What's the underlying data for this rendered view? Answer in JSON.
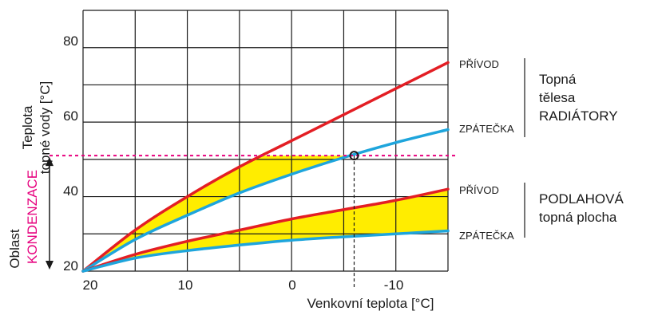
{
  "chart_data": {
    "type": "line",
    "xlabel": "Venkovní teplota [°C]",
    "ylabel_line1": "Teplota",
    "ylabel_line2": "topné vody [°C]",
    "x_ticks": [
      "20",
      "10",
      "0",
      "-10"
    ],
    "y_ticks": [
      "20",
      "40",
      "60",
      "80"
    ],
    "xlim": [
      20,
      -15
    ],
    "ylim": [
      20,
      90
    ],
    "x_grid_values": [
      20,
      15,
      10,
      5,
      0,
      -5,
      -10,
      -15
    ],
    "y_grid_values": [
      20,
      30,
      40,
      50,
      60,
      70,
      80,
      90
    ],
    "grid": true,
    "condensation_threshold": 51,
    "condensation_marker_x": -6,
    "condensation_label_line1": "Oblast",
    "condensation_label_line2": "KONDENZACE",
    "series": [
      {
        "name": "PŘÍVOD",
        "group": "radiators",
        "color": "#e31e24",
        "x": [
          20,
          15,
          10,
          5,
          0,
          -5,
          -10,
          -15
        ],
        "y": [
          20,
          31,
          40,
          48,
          55,
          62,
          69,
          76
        ]
      },
      {
        "name": "ZPÁTEČKA",
        "group": "radiators",
        "color": "#1ea5dc",
        "x": [
          20,
          15,
          10,
          5,
          0,
          -5,
          -10,
          -15
        ],
        "y": [
          20,
          28.5,
          35,
          41,
          46,
          50.5,
          54.5,
          58
        ]
      },
      {
        "name": "PŘÍVOD",
        "group": "floor",
        "color": "#e31e24",
        "x": [
          20,
          15,
          10,
          5,
          0,
          -5,
          -10,
          -15
        ],
        "y": [
          20,
          24.5,
          28,
          31,
          34,
          36.5,
          39,
          42
        ]
      },
      {
        "name": "ZPÁTEČKA",
        "group": "floor",
        "color": "#1ea5dc",
        "x": [
          20,
          15,
          10,
          5,
          0,
          -5,
          -10,
          -15
        ],
        "y": [
          20,
          23.5,
          25.5,
          27,
          28.3,
          29.2,
          30,
          30.8
        ]
      }
    ],
    "groups": [
      {
        "id": "radiators",
        "label_line1": "Topná",
        "label_line2": "tělesa",
        "label_line3": "RADIÁTORY"
      },
      {
        "id": "floor",
        "label_line1": "PODLAHOVÁ",
        "label_line2": "topná plocha"
      }
    ],
    "colors": {
      "supply": "#e31e24",
      "return": "#1ea5dc",
      "condensation": "#e6007e",
      "fill": "#ffed00"
    }
  }
}
